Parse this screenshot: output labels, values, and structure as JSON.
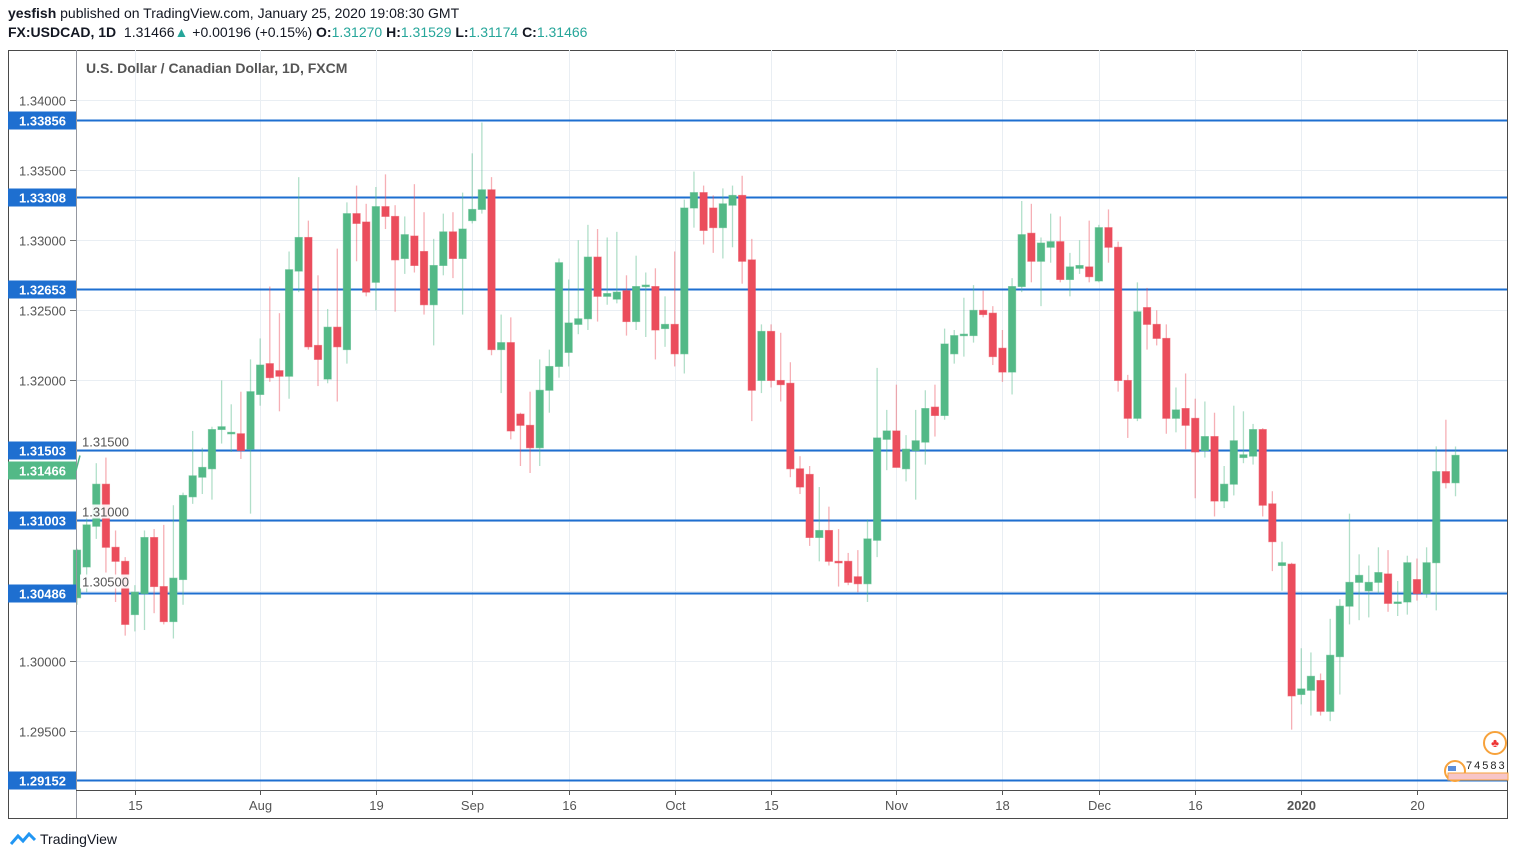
{
  "header": {
    "author": "yesfish",
    "published_text": "published on TradingView.com, January 25, 2020 19:08:30 GMT",
    "symbol": "FX:USDCAD, 1D",
    "last_price": "1.31466",
    "change": "+0.00196 (+0.15%)",
    "o_label": "O:",
    "o_value": "1.31270",
    "h_label": "H:",
    "h_value": "1.31529",
    "l_label": "L:",
    "l_value": "1.31174",
    "c_label": "C:",
    "c_value": "1.31466"
  },
  "footer": {
    "brand": "TradingView"
  },
  "events_badge": "74583",
  "colors": {
    "up": "#53b987",
    "down": "#eb4d5c",
    "level": "#1e6fd0",
    "grid": "#e9eef3"
  },
  "chart_data": {
    "type": "candlestick",
    "title": "U.S. Dollar / Canadian Dollar, 1D, FXCM",
    "ylim": [
      1.29079,
      1.34357
    ],
    "y_ticks": [
      "1.34000",
      "1.33500",
      "1.33000",
      "1.32500",
      "1.32000",
      "1.31500",
      "1.31000",
      "1.30500",
      "1.30000",
      "1.29500"
    ],
    "x_ticks": [
      {
        "label": "15",
        "index": 6
      },
      {
        "label": "Aug",
        "index": 19
      },
      {
        "label": "19",
        "index": 31
      },
      {
        "label": "Sep",
        "index": 41
      },
      {
        "label": "16",
        "index": 51
      },
      {
        "label": "Oct",
        "index": 62
      },
      {
        "label": "15",
        "index": 72
      },
      {
        "label": "Nov",
        "index": 85
      },
      {
        "label": "18",
        "index": 96
      },
      {
        "label": "Dec",
        "index": 106
      },
      {
        "label": "16",
        "index": 116
      },
      {
        "label": "2020",
        "index": 127,
        "bold": true
      },
      {
        "label": "20",
        "index": 139
      }
    ],
    "horizontal_levels": [
      "1.33856",
      "1.33308",
      "1.32653",
      "1.31503",
      "1.31003",
      "1.30486",
      "1.29152"
    ],
    "current_price": "1.31466",
    "ohlc_format": [
      "open",
      "high",
      "low",
      "close"
    ],
    "candles": [
      [
        1.3045,
        1.308,
        1.304,
        1.3079
      ],
      [
        1.3067,
        1.3103,
        1.3049,
        1.3097
      ],
      [
        1.3096,
        1.3141,
        1.3087,
        1.3126
      ],
      [
        1.3126,
        1.3145,
        1.3063,
        1.3081
      ],
      [
        1.3081,
        1.3093,
        1.3042,
        1.3071
      ],
      [
        1.3071,
        1.3074,
        1.3018,
        1.3026
      ],
      [
        1.3033,
        1.3054,
        1.3021,
        1.3049
      ],
      [
        1.3048,
        1.3093,
        1.3022,
        1.3088
      ],
      [
        1.3088,
        1.3094,
        1.3034,
        1.3053
      ],
      [
        1.3053,
        1.3097,
        1.3026,
        1.3028
      ],
      [
        1.3028,
        1.3111,
        1.3016,
        1.3059
      ],
      [
        1.3058,
        1.312,
        1.304,
        1.3118
      ],
      [
        1.3117,
        1.3164,
        1.3112,
        1.3132
      ],
      [
        1.3131,
        1.3152,
        1.3119,
        1.3138
      ],
      [
        1.3137,
        1.3167,
        1.3115,
        1.3165
      ],
      [
        1.3165,
        1.32,
        1.3155,
        1.3167
      ],
      [
        1.3162,
        1.3183,
        1.3149,
        1.3163
      ],
      [
        1.3162,
        1.3192,
        1.3144,
        1.315
      ],
      [
        1.3151,
        1.3215,
        1.3105,
        1.3192
      ],
      [
        1.319,
        1.323,
        1.3182,
        1.3211
      ],
      [
        1.3212,
        1.3267,
        1.3199,
        1.3202
      ],
      [
        1.3207,
        1.3248,
        1.3178,
        1.3203
      ],
      [
        1.3203,
        1.3292,
        1.3187,
        1.3279
      ],
      [
        1.3278,
        1.3345,
        1.3263,
        1.3302
      ],
      [
        1.3302,
        1.3314,
        1.3222,
        1.3224
      ],
      [
        1.3225,
        1.3275,
        1.3196,
        1.3215
      ],
      [
        1.3201,
        1.3251,
        1.3198,
        1.3238
      ],
      [
        1.3238,
        1.3294,
        1.3185,
        1.3224
      ],
      [
        1.3222,
        1.3327,
        1.3212,
        1.3319
      ],
      [
        1.3319,
        1.3339,
        1.3285,
        1.3312
      ],
      [
        1.3313,
        1.3326,
        1.326,
        1.3263
      ],
      [
        1.327,
        1.3338,
        1.325,
        1.3324
      ],
      [
        1.3324,
        1.3347,
        1.3308,
        1.3317
      ],
      [
        1.3317,
        1.3325,
        1.3249,
        1.3286
      ],
      [
        1.3287,
        1.3317,
        1.3276,
        1.3304
      ],
      [
        1.3303,
        1.334,
        1.3277,
        1.3282
      ],
      [
        1.3292,
        1.332,
        1.3247,
        1.3254
      ],
      [
        1.3254,
        1.3301,
        1.3225,
        1.3282
      ],
      [
        1.3282,
        1.3319,
        1.3275,
        1.3306
      ],
      [
        1.3306,
        1.332,
        1.3273,
        1.3287
      ],
      [
        1.3287,
        1.3334,
        1.3247,
        1.3308
      ],
      [
        1.3314,
        1.3362,
        1.3312,
        1.3322
      ],
      [
        1.3322,
        1.3384,
        1.3319,
        1.3336
      ],
      [
        1.3336,
        1.3345,
        1.3218,
        1.3222
      ],
      [
        1.3222,
        1.3247,
        1.3191,
        1.3227
      ],
      [
        1.3227,
        1.3245,
        1.3158,
        1.3164
      ],
      [
        1.3176,
        1.3177,
        1.3139,
        1.3168
      ],
      [
        1.3168,
        1.3192,
        1.3134,
        1.3152
      ],
      [
        1.3152,
        1.3215,
        1.3139,
        1.3193
      ],
      [
        1.3193,
        1.3222,
        1.3177,
        1.321
      ],
      [
        1.321,
        1.3287,
        1.3202,
        1.3284
      ],
      [
        1.322,
        1.3272,
        1.321,
        1.3241
      ],
      [
        1.324,
        1.33,
        1.3233,
        1.3244
      ],
      [
        1.3244,
        1.3311,
        1.3236,
        1.3288
      ],
      [
        1.3288,
        1.3308,
        1.3242,
        1.326
      ],
      [
        1.326,
        1.3302,
        1.3254,
        1.3262
      ],
      [
        1.3258,
        1.3306,
        1.3255,
        1.3263
      ],
      [
        1.3264,
        1.3275,
        1.3232,
        1.3242
      ],
      [
        1.3242,
        1.3289,
        1.3236,
        1.3267
      ],
      [
        1.3267,
        1.3277,
        1.3231,
        1.3268
      ],
      [
        1.3267,
        1.328,
        1.3215,
        1.3236
      ],
      [
        1.3237,
        1.326,
        1.3224,
        1.324
      ],
      [
        1.324,
        1.3292,
        1.321,
        1.3219
      ],
      [
        1.3219,
        1.3329,
        1.3205,
        1.3323
      ],
      [
        1.3323,
        1.3349,
        1.3309,
        1.3334
      ],
      [
        1.3334,
        1.3339,
        1.3297,
        1.3307
      ],
      [
        1.3323,
        1.3332,
        1.3291,
        1.3309
      ],
      [
        1.3309,
        1.3337,
        1.3287,
        1.3326
      ],
      [
        1.3325,
        1.3339,
        1.3295,
        1.3332
      ],
      [
        1.3332,
        1.3346,
        1.3269,
        1.3285
      ],
      [
        1.3286,
        1.3301,
        1.3171,
        1.3193
      ],
      [
        1.32,
        1.324,
        1.3191,
        1.3235
      ],
      [
        1.3235,
        1.324,
        1.3195,
        1.32
      ],
      [
        1.32,
        1.3234,
        1.3185,
        1.3197
      ],
      [
        1.3198,
        1.3213,
        1.3131,
        1.3137
      ],
      [
        1.3137,
        1.3146,
        1.3119,
        1.3124
      ],
      [
        1.3133,
        1.3139,
        1.3082,
        1.3088
      ],
      [
        1.3088,
        1.3124,
        1.3071,
        1.3093
      ],
      [
        1.3093,
        1.311,
        1.3068,
        1.3071
      ],
      [
        1.3071,
        1.3094,
        1.3053,
        1.307
      ],
      [
        1.3071,
        1.3077,
        1.3054,
        1.3056
      ],
      [
        1.306,
        1.3079,
        1.3049,
        1.3055
      ],
      [
        1.3055,
        1.3101,
        1.3042,
        1.3087
      ],
      [
        1.3086,
        1.3209,
        1.3074,
        1.3159
      ],
      [
        1.3158,
        1.3179,
        1.3136,
        1.3164
      ],
      [
        1.3164,
        1.3197,
        1.3138,
        1.3138
      ],
      [
        1.3137,
        1.3161,
        1.3128,
        1.3151
      ],
      [
        1.315,
        1.3179,
        1.3115,
        1.3157
      ],
      [
        1.3156,
        1.3193,
        1.314,
        1.318
      ],
      [
        1.3181,
        1.3197,
        1.316,
        1.3175
      ],
      [
        1.3175,
        1.3237,
        1.3172,
        1.3226
      ],
      [
        1.3219,
        1.3236,
        1.3212,
        1.3232
      ],
      [
        1.3232,
        1.3259,
        1.3217,
        1.3233
      ],
      [
        1.3232,
        1.3268,
        1.3227,
        1.325
      ],
      [
        1.325,
        1.3264,
        1.3245,
        1.3247
      ],
      [
        1.3248,
        1.3253,
        1.3211,
        1.3217
      ],
      [
        1.3223,
        1.3236,
        1.3199,
        1.3206
      ],
      [
        1.3206,
        1.3273,
        1.319,
        1.3267
      ],
      [
        1.3267,
        1.3328,
        1.3263,
        1.3304
      ],
      [
        1.3305,
        1.3326,
        1.327,
        1.3285
      ],
      [
        1.3285,
        1.3302,
        1.3253,
        1.3298
      ],
      [
        1.3295,
        1.3319,
        1.3284,
        1.3299
      ],
      [
        1.3299,
        1.3317,
        1.327,
        1.3272
      ],
      [
        1.3272,
        1.3291,
        1.326,
        1.3281
      ],
      [
        1.328,
        1.33,
        1.3276,
        1.3282
      ],
      [
        1.3281,
        1.3314,
        1.327,
        1.3274
      ],
      [
        1.3271,
        1.3311,
        1.327,
        1.3309
      ],
      [
        1.3309,
        1.3322,
        1.3284,
        1.3295
      ],
      [
        1.3295,
        1.3299,
        1.3192,
        1.32
      ],
      [
        1.32,
        1.3204,
        1.3159,
        1.3173
      ],
      [
        1.3173,
        1.327,
        1.3171,
        1.3249
      ],
      [
        1.3252,
        1.3266,
        1.3222,
        1.324
      ],
      [
        1.324,
        1.325,
        1.3225,
        1.323
      ],
      [
        1.323,
        1.324,
        1.3162,
        1.3173
      ],
      [
        1.3173,
        1.3195,
        1.3163,
        1.3179
      ],
      [
        1.318,
        1.3205,
        1.3151,
        1.3168
      ],
      [
        1.3173,
        1.3187,
        1.3116,
        1.3149
      ],
      [
        1.315,
        1.3185,
        1.3145,
        1.316
      ],
      [
        1.316,
        1.3177,
        1.3103,
        1.3114
      ],
      [
        1.3114,
        1.3139,
        1.3109,
        1.3126
      ],
      [
        1.3126,
        1.3182,
        1.3118,
        1.3157
      ],
      [
        1.3145,
        1.3178,
        1.3141,
        1.3147
      ],
      [
        1.3146,
        1.3169,
        1.314,
        1.3165
      ],
      [
        1.3165,
        1.3166,
        1.3103,
        1.3111
      ],
      [
        1.3112,
        1.3121,
        1.3064,
        1.3085
      ],
      [
        1.3068,
        1.3085,
        1.305,
        1.307
      ],
      [
        1.3069,
        1.307,
        1.2951,
        1.2975
      ],
      [
        1.2976,
        1.3009,
        1.2969,
        1.298
      ],
      [
        1.2979,
        1.3006,
        1.2961,
        1.2989
      ],
      [
        1.2986,
        1.2991,
        1.2961,
        1.2964
      ],
      [
        1.2964,
        1.303,
        1.2957,
        1.3004
      ],
      [
        1.3003,
        1.3044,
        1.2976,
        1.3039
      ],
      [
        1.3039,
        1.3105,
        1.3026,
        1.3056
      ],
      [
        1.3056,
        1.3076,
        1.3029,
        1.3061
      ],
      [
        1.305,
        1.3068,
        1.3031,
        1.3056
      ],
      [
        1.3056,
        1.3081,
        1.3048,
        1.3063
      ],
      [
        1.3062,
        1.3079,
        1.3035,
        1.3041
      ],
      [
        1.3041,
        1.3057,
        1.3032,
        1.3042
      ],
      [
        1.3042,
        1.3075,
        1.3033,
        1.307
      ],
      [
        1.3058,
        1.3073,
        1.3043,
        1.3048
      ],
      [
        1.3048,
        1.3081,
        1.3045,
        1.307
      ],
      [
        1.307,
        1.3153,
        1.3036,
        1.3135
      ],
      [
        1.3135,
        1.3172,
        1.3123,
        1.3127
      ],
      [
        1.3127,
        1.31529,
        1.31174,
        1.31466
      ]
    ]
  }
}
